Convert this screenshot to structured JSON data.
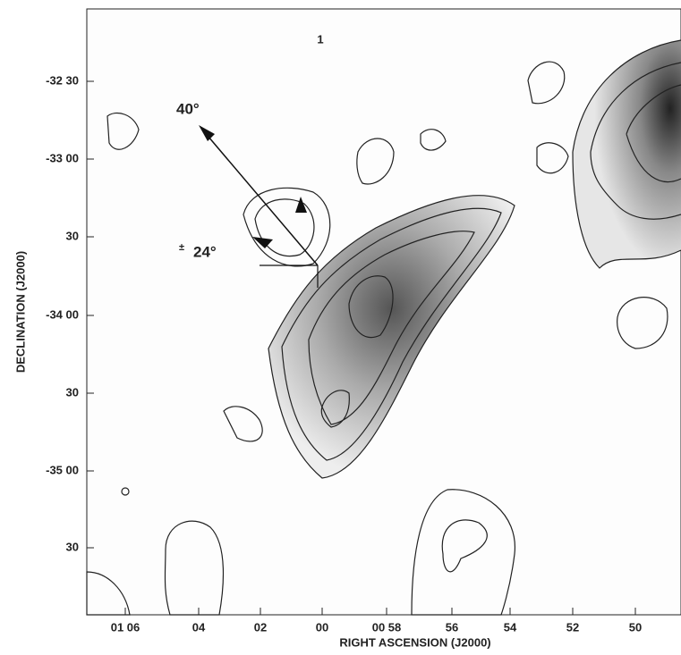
{
  "figure": {
    "x_axis": {
      "title": "RIGHT ASCENSION (J2000)",
      "ticks": [
        "01 06",
        "04",
        "02",
        "00",
        "00 58",
        "56",
        "54",
        "52",
        "50"
      ]
    },
    "y_axis": {
      "title": "DECLINATION (J2000)",
      "ticks": [
        "-32 30",
        "-33 00",
        "30",
        "-34 00",
        "30",
        "-35 00",
        "30"
      ]
    },
    "annotations": {
      "panel": "1",
      "angle_a": "40°",
      "angle_b": "24°",
      "sign": "±"
    }
  }
}
